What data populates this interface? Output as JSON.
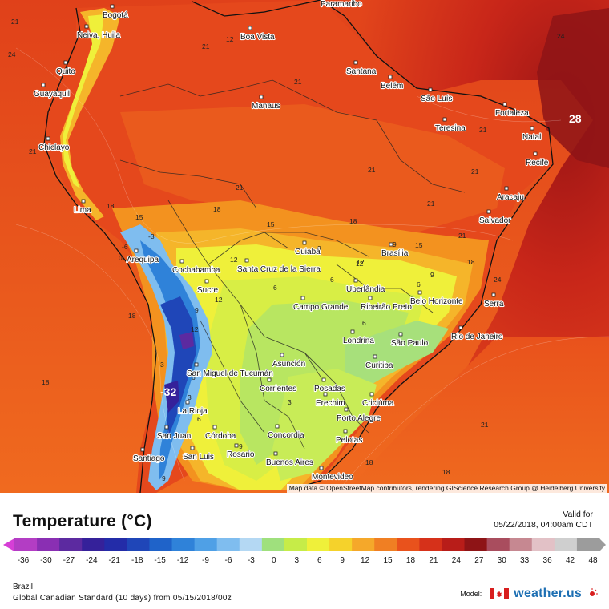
{
  "map": {
    "region": "Brazil",
    "attribution": "Map data © OpenStreetMap contributors, rendering GIScience Research Group @ Heidelberg University",
    "cities": [
      "Paramaribo",
      "Bogotá",
      "Neiva, Huila",
      "Boa Vista",
      "Quito",
      "Guayaquil",
      "Santana",
      "Belém",
      "São Luís",
      "Manaus",
      "Fortaleza",
      "Teresina",
      "Natal",
      "Chiclayo",
      "Recife",
      "Aracaju",
      "Lima",
      "Salvador",
      "Cochabamba",
      "Santa Cruz de la Sierra",
      "Cuiabá",
      "Brasília",
      "Arequipa",
      "Uberlândia",
      "Sucre",
      "Belo Horizonte",
      "Serra",
      "Campo Grande",
      "Ribeirão Preto",
      "Londrina",
      "São Paulo",
      "Rio de Janeiro",
      "Asunción",
      "San Miguel de Tucumán",
      "Curitiba",
      "Corrientes",
      "Posadas",
      "Erechim",
      "Criciúma",
      "La Rioja",
      "Porto Alegre",
      "San Juan",
      "Córdoba",
      "Concordia",
      "Pelotas",
      "Santiago",
      "San Luis",
      "Rosario",
      "Buenos Aires",
      "Montevideo"
    ],
    "contour_labels": [
      "24",
      "21",
      "21",
      "21",
      "24",
      "21",
      "21",
      "21",
      "21",
      "21",
      "21",
      "18",
      "15",
      "18",
      "18",
      "15",
      "12",
      "9",
      "6",
      "6",
      "9",
      "12",
      "15",
      "18",
      "24",
      "21",
      "18",
      "18",
      "18",
      "21",
      "18",
      "3",
      "6",
      "9",
      "12",
      "0",
      "-3",
      "-6",
      "3",
      "6",
      "9",
      "12",
      "3",
      "6",
      "9",
      "12",
      "3",
      "6",
      "9",
      "12"
    ],
    "extremes": {
      "max": "28",
      "min": "-32"
    }
  },
  "legend": {
    "title": "Temperature (°C)",
    "valid_label": "Valid for",
    "valid_time": "05/22/2018, 04:00am CDT",
    "ticks": [
      "-36",
      "-30",
      "-27",
      "-24",
      "-21",
      "-18",
      "-15",
      "-12",
      "-9",
      "-6",
      "-3",
      "0",
      "3",
      "6",
      "9",
      "12",
      "15",
      "18",
      "21",
      "24",
      "27",
      "30",
      "33",
      "36",
      "42",
      "48"
    ],
    "colors": [
      "#d63fd6",
      "#b33dc4",
      "#8a2fb3",
      "#5c2aa0",
      "#35219a",
      "#232ca8",
      "#1f46b8",
      "#1f63c9",
      "#2f82d9",
      "#4fa0e6",
      "#7fbdef",
      "#b4d8f3",
      "#9fe07d",
      "#c6ec48",
      "#eff03a",
      "#f5d22b",
      "#f5a82a",
      "#f07f23",
      "#e9521c",
      "#d6311a",
      "#b81d19",
      "#8e1416",
      "#a94d5e",
      "#c68891",
      "#e2c1c6",
      "#cfcfcf",
      "#9c9c9c"
    ],
    "region": "Brazil",
    "model_line": "Global Canadian Standard (10 days) from 05/15/2018/00z",
    "model_label": "Model:",
    "site": "weather.us"
  }
}
